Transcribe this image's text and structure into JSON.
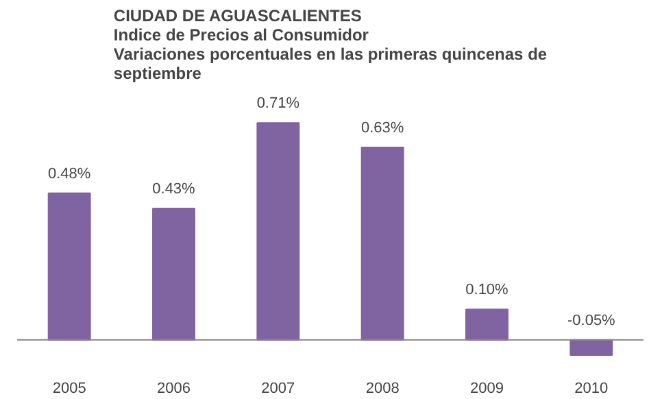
{
  "chart_data": {
    "type": "bar",
    "title": "CIUDAD DE AGUASCALIENTES\nIndice de Precios al Consumidor\nVariaciones porcentuales en las primeras quincenas de septiembre",
    "categories": [
      "2005",
      "2006",
      "2007",
      "2008",
      "2009",
      "2010"
    ],
    "values": [
      0.48,
      0.43,
      0.71,
      0.63,
      0.1,
      -0.05
    ],
    "value_labels": [
      "0.48%",
      "0.43%",
      "0.71%",
      "0.63%",
      "0.10%",
      "-0.05%"
    ],
    "color": "#8064a2",
    "grid": false
  }
}
